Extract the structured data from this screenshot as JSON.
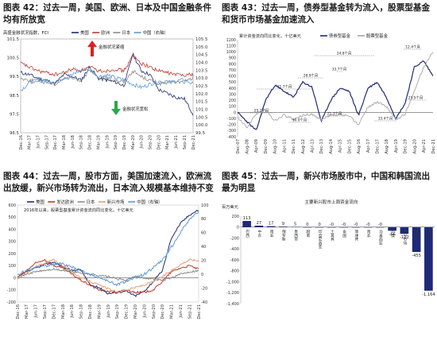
{
  "colors": {
    "us": "#1f2a78",
    "europe": "#c0392b",
    "japan": "#8a8a8a",
    "china": "#5b9bd5",
    "bond": "#1f2a78",
    "equity": "#a6a6a6",
    "bar": "#1f2a78",
    "em": "#e5a07a",
    "red_arrow": "#e02020",
    "green_arrow": "#2aa84a"
  },
  "panel42": {
    "title": "图表 42：过去一周，美国、欧洲、日本及中国金融条件均有所放宽",
    "chart_data": {
      "type": "line",
      "title": "高盛金融状况指数，FCI",
      "x_ticks": [
        "Dec-16",
        "Mar-17",
        "Jun-17",
        "Sep-17",
        "Dec-17",
        "Mar-18",
        "Jun-18",
        "Sep-18",
        "Dec-18",
        "Mar-19",
        "Jun-19",
        "Sep-19",
        "Dec-19",
        "Mar-20",
        "Jun-20",
        "Sep-20",
        "Dec-20",
        "Mar-21",
        "Jun-21",
        "Sep-21",
        "Dec-21"
      ],
      "y_left_ticks": [
        "101.5",
        "100.5",
        "99.5",
        "98.5",
        "97.5",
        "96.5"
      ],
      "y_right_ticks": [
        "105.5",
        "105.0",
        "104.5",
        "104.0",
        "103.5",
        "103.0",
        "102.5",
        "102.0",
        "101.5",
        "101.0",
        "100.5",
        "100.0",
        "99.5"
      ],
      "ylim_left": [
        96.5,
        101.5
      ],
      "ylim_right": [
        99.5,
        105.5
      ],
      "legend": [
        "美国",
        "欧洲",
        "日本",
        "中国（右轴）"
      ],
      "annotations": [
        "金融状况紧缩",
        "金融状况宽松"
      ],
      "series": [
        {
          "name": "美国",
          "axis": "left",
          "values": [
            99.7,
            99.6,
            99.4,
            99.3,
            99.1,
            99.6,
            99.5,
            99.3,
            100.0,
            99.4,
            99.3,
            99.2,
            99.0,
            100.7,
            99.8,
            99.6,
            98.8,
            98.6,
            98.4,
            98.3,
            97.5
          ]
        },
        {
          "name": "欧洲",
          "axis": "left",
          "values": [
            100.2,
            100.0,
            99.8,
            99.7,
            99.6,
            99.7,
            99.9,
            99.8,
            100.0,
            99.8,
            99.8,
            99.9,
            99.8,
            100.6,
            100.2,
            100.0,
            99.8,
            99.7,
            99.6,
            99.6,
            99.6
          ]
        },
        {
          "name": "日本",
          "axis": "left",
          "values": [
            99.4,
            99.3,
            99.2,
            99.2,
            99.1,
            99.4,
            99.4,
            99.3,
            99.8,
            99.4,
            99.4,
            99.3,
            99.2,
            99.8,
            99.5,
            99.3,
            99.1,
            99.2,
            99.2,
            99.2,
            99.4
          ]
        },
        {
          "name": "中国（右轴）",
          "axis": "right",
          "values": [
            102.2,
            102.7,
            102.9,
            102.8,
            102.8,
            103.0,
            103.2,
            103.5,
            103.6,
            103.1,
            103.2,
            103.0,
            102.9,
            102.6,
            102.4,
            102.6,
            102.8,
            102.7,
            102.8,
            102.9,
            102.6
          ]
        }
      ]
    }
  },
  "panel43": {
    "title": "图表 43：过去一周，债券型基金转为流入，股票型基金和货币市场基金加速流入",
    "chart_data": {
      "type": "line",
      "title": "累计资金流向同比变化，十亿美元",
      "x_ticks": [
        "Dec-07",
        "Aug-08",
        "Apr-09",
        "Dec-09",
        "Aug-10",
        "Apr-11",
        "Dec-11",
        "Aug-12",
        "Apr-13",
        "Dec-13",
        "Aug-14",
        "Apr-15",
        "Dec-15",
        "Aug-16",
        "Apr-17",
        "Dec-17",
        "Aug-18",
        "Apr-19",
        "Dec-19",
        "Aug-20",
        "Apr-21",
        "Dec-21"
      ],
      "y_ticks": [
        1200,
        1100,
        1000,
        900,
        800,
        700,
        600,
        500,
        400,
        300,
        200,
        100,
        0,
        -100,
        -200,
        -300,
        -400
      ],
      "ylim": [
        -400,
        1200
      ],
      "legend": [
        "债券型基金",
        "股票型基金"
      ],
      "annotations": [
        "31.7个月",
        "28.9个月",
        "33.7个月",
        "24.8个月",
        "12.4个月",
        "25.2个月",
        "30.0个月",
        "21.7个月",
        "33.4个月",
        "25.5个月"
      ],
      "series": [
        {
          "name": "债券型基金",
          "values": [
            0,
            -150,
            -300,
            200,
            450,
            350,
            250,
            500,
            420,
            -150,
            200,
            400,
            350,
            -50,
            400,
            500,
            250,
            -100,
            150,
            750,
            850,
            600
          ]
        },
        {
          "name": "股票型基金",
          "values": [
            -80,
            -250,
            -20,
            40,
            -140,
            -40,
            -120,
            -50,
            -30,
            -130,
            -50,
            -40,
            -60,
            -200,
            90,
            170,
            100,
            -120,
            -30,
            360,
            750,
            1000
          ]
        }
      ]
    }
  },
  "panel44": {
    "title": "图表 44：过去一周，股市方面，美国加速流入，欧洲流出放缓，新兴市场转为流出，日本流入规模基本维持不变",
    "chart_data": {
      "type": "line",
      "title": "2016年以来，股票型基金累计资金流向同比变化，十亿美元",
      "x_ticks": [
        "Dec-16",
        "Mar-17",
        "Jun-17",
        "Sep-17",
        "Dec-17",
        "Mar-18",
        "Jun-18",
        "Sep-18",
        "Dec-18",
        "Mar-19",
        "Jun-19",
        "Sep-19",
        "Dec-19",
        "Mar-20",
        "Jun-20",
        "Sep-20",
        "Dec-20",
        "Mar-21",
        "Jun-21",
        "Sep-21",
        "Dec-21"
      ],
      "y_left_ticks": [
        600,
        500,
        400,
        300,
        200,
        100,
        0,
        -100,
        -200
      ],
      "y_right_ticks": [
        100,
        80,
        60,
        40,
        20,
        0,
        -20,
        -40
      ],
      "ylim_left": [
        -200,
        600
      ],
      "ylim_right": [
        -40,
        100
      ],
      "legend": [
        "美国",
        "发达欧洲",
        "日本",
        "新兴市场",
        "中国（右轴）"
      ],
      "series": [
        {
          "name": "美国",
          "axis": "left",
          "values": [
            0,
            50,
            80,
            110,
            130,
            90,
            60,
            70,
            -60,
            -80,
            -130,
            -120,
            -110,
            -150,
            -110,
            -30,
            60,
            330,
            450,
            520,
            560
          ]
        },
        {
          "name": "发达欧洲",
          "axis": "left",
          "values": [
            0,
            60,
            120,
            150,
            100,
            80,
            30,
            -20,
            -60,
            -100,
            -110,
            -120,
            -100,
            -120,
            -120,
            -100,
            -30,
            50,
            80,
            100,
            70
          ]
        },
        {
          "name": "日本",
          "axis": "left",
          "values": [
            0,
            30,
            50,
            60,
            70,
            60,
            50,
            40,
            30,
            20,
            10,
            -10,
            -20,
            10,
            0,
            -10,
            -20,
            0,
            30,
            50,
            60
          ]
        },
        {
          "name": "新兴市场",
          "axis": "left",
          "values": [
            0,
            40,
            90,
            120,
            150,
            100,
            50,
            0,
            -30,
            -60,
            -90,
            -120,
            -100,
            -80,
            -60,
            -30,
            10,
            60,
            110,
            150,
            140
          ]
        },
        {
          "name": "中国（右轴）",
          "axis": "right",
          "values": [
            0,
            5,
            10,
            12,
            15,
            15,
            10,
            5,
            0,
            -5,
            -10,
            -15,
            -10,
            -5,
            0,
            10,
            20,
            40,
            60,
            80,
            90
          ]
        }
      ]
    }
  },
  "panel45": {
    "title": "图表 45：过去一周，新兴市场股市中，中国和韩国流出最为明显",
    "chart_data": {
      "type": "bar",
      "title": "主要新兴股市上周资金流向",
      "unit": "百万美元",
      "y_ticks": [
        200,
        0,
        -200,
        -400,
        -600,
        -800,
        -1000,
        -1200,
        -1400
      ],
      "ylim": [
        -1400,
        200
      ],
      "categories": [
        "巴西",
        "中东",
        "南非",
        "俄罗斯",
        "墨西哥",
        "越南",
        "印度尼西亚",
        "土耳其",
        "泰国",
        "菲律宾",
        "南非",
        "马来西亚",
        "印度",
        "新兴市场",
        "韩国",
        "中国"
      ],
      "values": [
        113,
        27,
        17,
        9,
        5,
        0,
        0,
        0,
        0,
        0,
        0,
        0,
        -66,
        -122,
        -455,
        -1164
      ],
      "labels": [
        "113",
        "27",
        "17",
        "9",
        "5",
        "0",
        "0",
        "-0",
        "-0",
        "-0",
        "-0",
        "-0",
        "-66",
        "-122",
        "-455",
        "-1,164"
      ]
    }
  }
}
